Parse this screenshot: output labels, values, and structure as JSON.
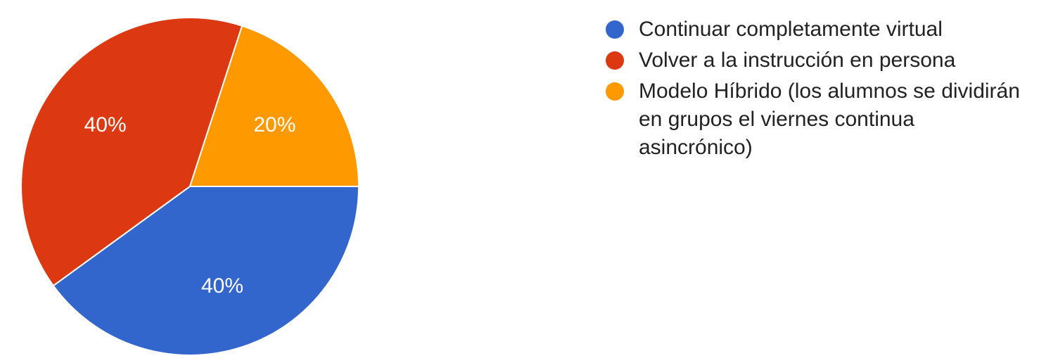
{
  "chart_data": {
    "type": "pie",
    "legend_position": "right",
    "slices": [
      {
        "label": "Continuar completamente virtual",
        "value": 40,
        "display": "40%",
        "color": "#3366cc"
      },
      {
        "label": "Volver a la instrucción en persona",
        "value": 40,
        "display": "40%",
        "color": "#dc3912"
      },
      {
        "label": "Modelo Híbrido (los alumnos se dividirán en grupos el viernes continua asincrónico)",
        "value": 20,
        "display": "20%",
        "color": "#ff9900"
      }
    ]
  }
}
